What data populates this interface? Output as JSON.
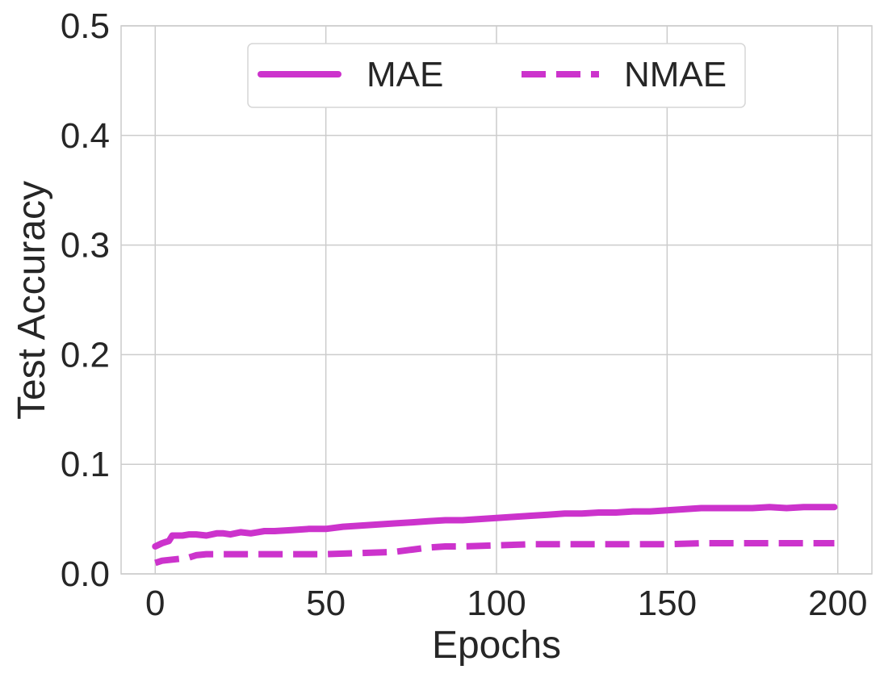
{
  "chart_data": {
    "type": "line",
    "title": "",
    "xlabel": "Epochs",
    "ylabel": "Test Accuracy",
    "xlim": [
      -10,
      210
    ],
    "ylim": [
      0.0,
      0.5
    ],
    "x_ticks": [
      0,
      50,
      100,
      150,
      200
    ],
    "x_tick_labels": [
      "0",
      "50",
      "100",
      "150",
      "200"
    ],
    "y_ticks": [
      0.0,
      0.1,
      0.2,
      0.3,
      0.4,
      0.5
    ],
    "y_tick_labels": [
      "0.0",
      "0.1",
      "0.2",
      "0.3",
      "0.4",
      "0.5"
    ],
    "grid": true,
    "legend_position": "top-center",
    "series": [
      {
        "name": "MAE",
        "style": "solid",
        "color": "#cc33cc",
        "x": [
          0,
          2,
          3,
          4,
          5,
          8,
          10,
          12,
          15,
          18,
          20,
          22,
          25,
          28,
          30,
          32,
          35,
          40,
          45,
          50,
          55,
          60,
          65,
          70,
          75,
          80,
          85,
          90,
          95,
          100,
          105,
          110,
          115,
          120,
          125,
          130,
          135,
          140,
          145,
          150,
          155,
          160,
          165,
          170,
          175,
          180,
          185,
          190,
          195,
          199
        ],
        "y": [
          0.025,
          0.028,
          0.029,
          0.03,
          0.035,
          0.035,
          0.036,
          0.036,
          0.035,
          0.037,
          0.037,
          0.036,
          0.038,
          0.037,
          0.038,
          0.039,
          0.039,
          0.04,
          0.041,
          0.041,
          0.043,
          0.044,
          0.045,
          0.046,
          0.047,
          0.048,
          0.049,
          0.049,
          0.05,
          0.051,
          0.052,
          0.053,
          0.054,
          0.055,
          0.055,
          0.056,
          0.056,
          0.057,
          0.057,
          0.058,
          0.059,
          0.06,
          0.06,
          0.06,
          0.06,
          0.061,
          0.06,
          0.061,
          0.061,
          0.061
        ]
      },
      {
        "name": "NMAE",
        "style": "dashed",
        "color": "#cc33cc",
        "x": [
          0,
          2,
          5,
          8,
          10,
          12,
          15,
          20,
          30,
          40,
          50,
          60,
          70,
          75,
          80,
          85,
          90,
          100,
          110,
          120,
          130,
          140,
          150,
          160,
          170,
          180,
          190,
          199
        ],
        "y": [
          0.01,
          0.012,
          0.013,
          0.014,
          0.015,
          0.017,
          0.018,
          0.018,
          0.018,
          0.018,
          0.018,
          0.019,
          0.02,
          0.022,
          0.024,
          0.025,
          0.025,
          0.026,
          0.027,
          0.027,
          0.027,
          0.027,
          0.027,
          0.028,
          0.028,
          0.028,
          0.028,
          0.028
        ]
      }
    ]
  }
}
